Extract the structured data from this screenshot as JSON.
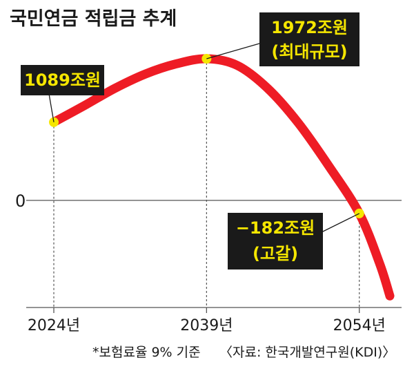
{
  "chart_data": {
    "type": "line",
    "title": "국민연금 적립금 추계",
    "xlabel": "",
    "ylabel": "",
    "x": [
      2024,
      2039,
      2054
    ],
    "x_tick_labels": [
      "2024년",
      "2039년",
      "2054년"
    ],
    "y_zero_label": "0",
    "series": [
      {
        "values": [
          1089,
          1972,
          -182
        ],
        "color": "#ee1c25"
      }
    ],
    "curve_points": [
      [
        2024,
        1089
      ],
      [
        2027,
        1320
      ],
      [
        2030,
        1560
      ],
      [
        2033,
        1760
      ],
      [
        2036,
        1900
      ],
      [
        2039,
        1972
      ],
      [
        2042,
        1880
      ],
      [
        2045,
        1560
      ],
      [
        2048,
        1080
      ],
      [
        2051,
        480
      ],
      [
        2054,
        -182
      ],
      [
        2056,
        -880
      ],
      [
        2057,
        -1330
      ]
    ],
    "annotations": [
      {
        "x": 2024,
        "y": 1089,
        "lines": [
          "1089조원"
        ]
      },
      {
        "x": 2039,
        "y": 1972,
        "lines": [
          "1972조원",
          "(최대규모)"
        ]
      },
      {
        "x": 2054,
        "y": -182,
        "lines": [
          "−182조원",
          "(고갈)"
        ]
      }
    ],
    "footnote": "*보험료율 9% 기준",
    "source": "〈자료: 한국개발연구원(KDI)〉",
    "ylim": [
      -1330,
      2700
    ],
    "xlim": [
      2024,
      2057
    ],
    "grid": false,
    "colors": {
      "line": "#ee1c25",
      "marker": "#f5e600",
      "label_bg": "#1a1a1a",
      "label_text": "#f5e600",
      "axis": "#555555"
    }
  }
}
